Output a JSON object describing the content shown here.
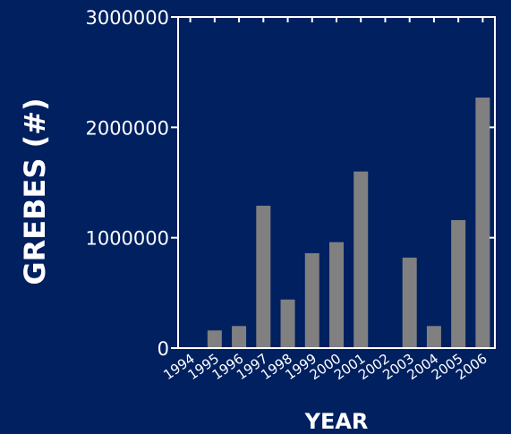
{
  "chart_data": {
    "type": "bar",
    "title": "",
    "xlabel": "YEAR",
    "ylabel": "GREBES (#)",
    "categories": [
      "1994",
      "1995",
      "1996",
      "1997",
      "1998",
      "1999",
      "2000",
      "2001",
      "2002",
      "2003",
      "2004",
      "2005",
      "2006"
    ],
    "values": [
      0,
      160000,
      200000,
      1290000,
      440000,
      860000,
      960000,
      1600000,
      0,
      820000,
      200000,
      1160000,
      2270000
    ],
    "ylim": [
      0,
      3000000
    ],
    "yticks": [
      "0",
      "1000000",
      "2000000",
      "3000000"
    ],
    "grid": false,
    "legend": "none",
    "colors": {
      "background": "#002060",
      "bar": "#808080",
      "axis": "#ffffff",
      "text": "#ffffff"
    }
  }
}
